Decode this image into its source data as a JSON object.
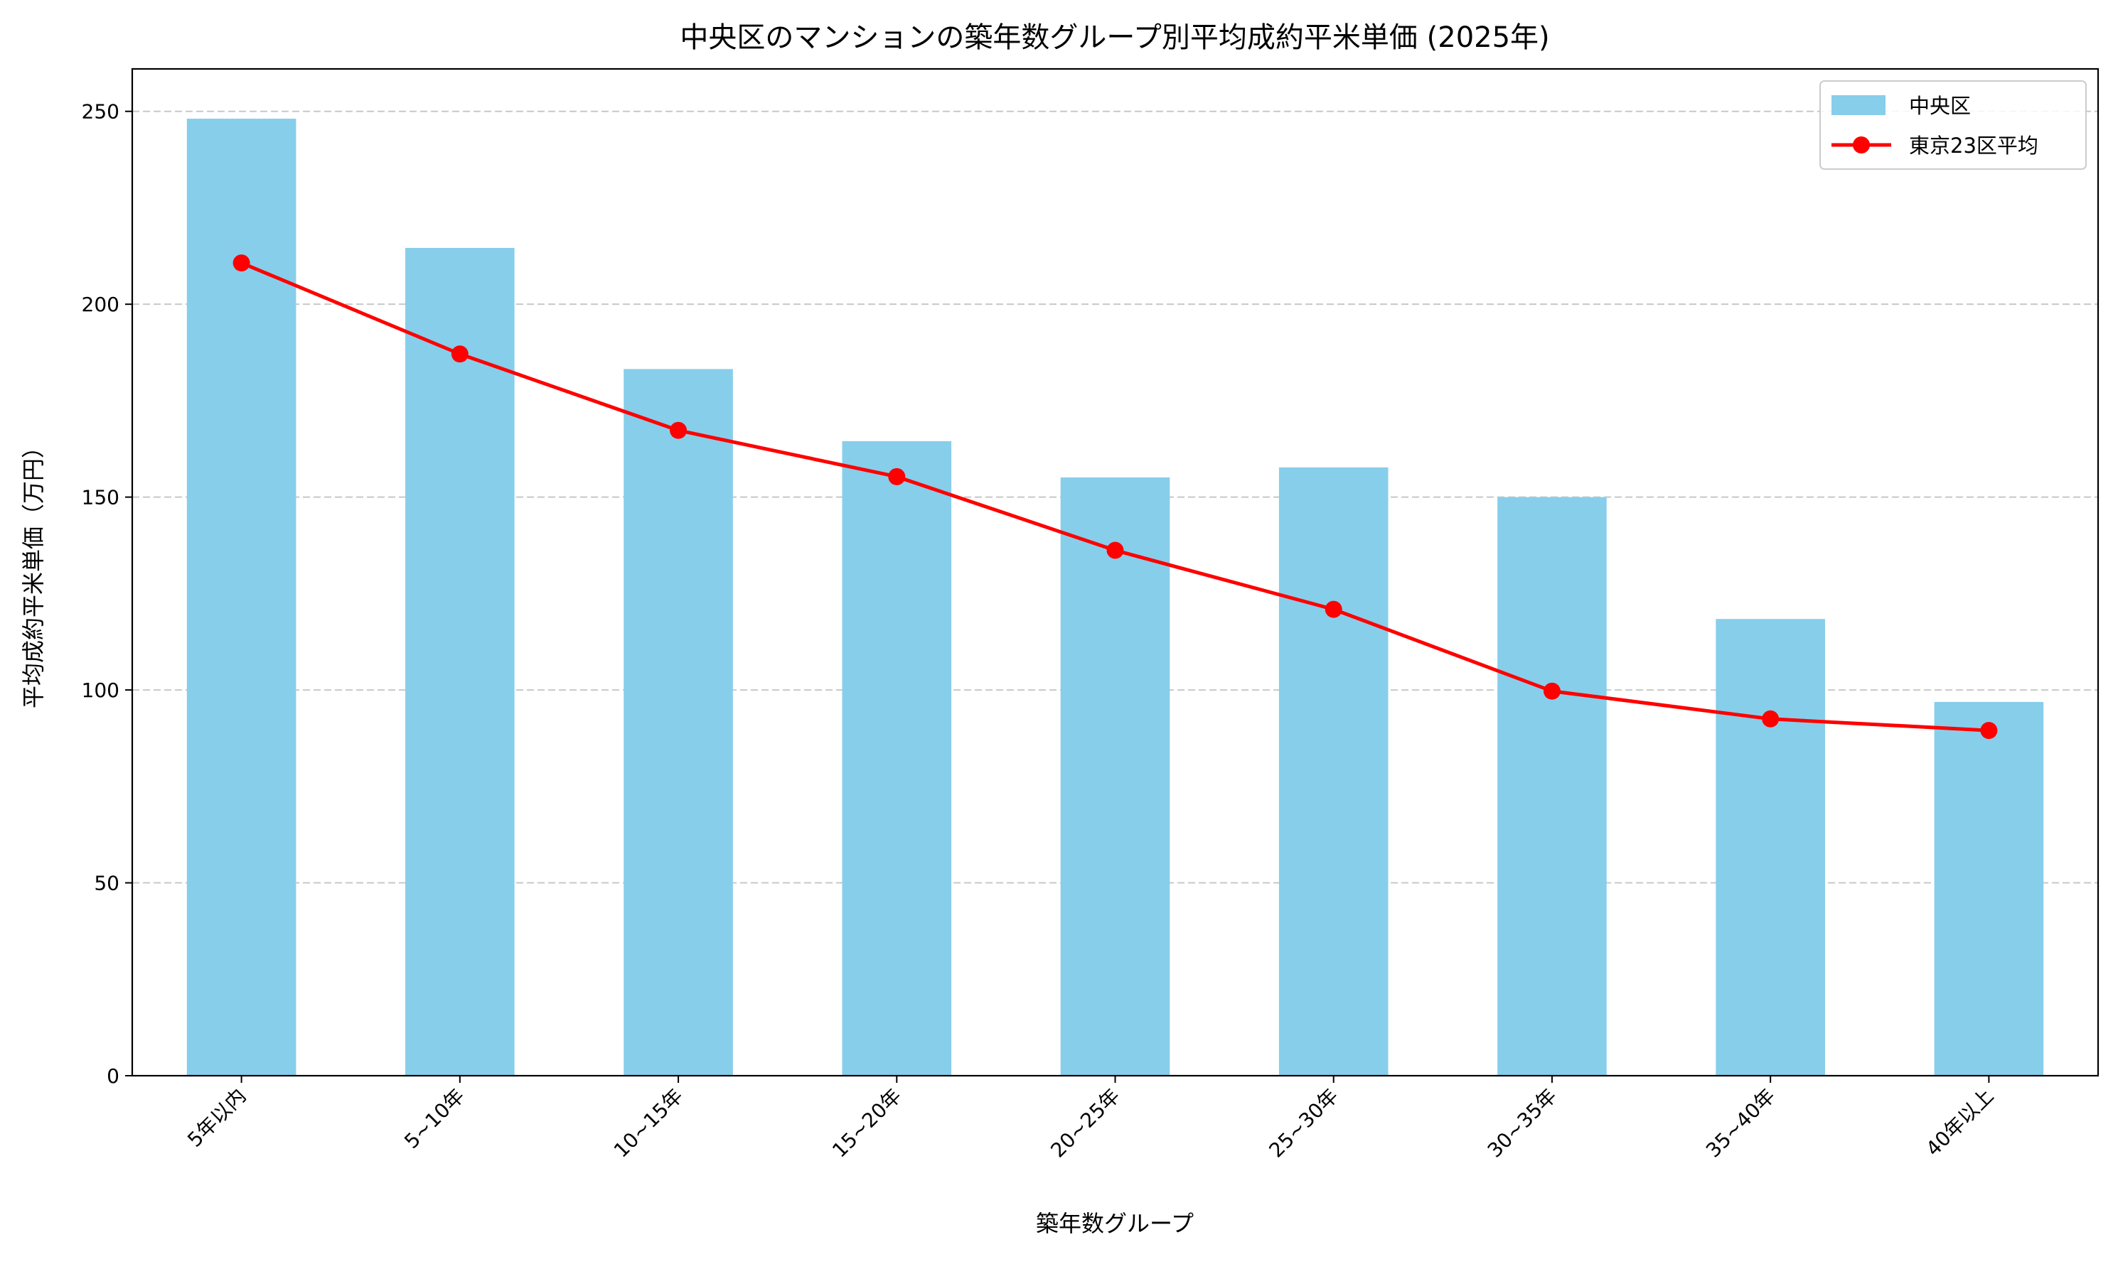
{
  "chart_data": {
    "type": "bar+line",
    "title": "中央区のマンションの築年数グループ別平均成約平米単価 (2025年)",
    "xlabel": "築年数グループ",
    "ylabel": "平均成約平米単価（万円）",
    "categories": [
      "5年以内",
      "5~10年",
      "10~15年",
      "15~20年",
      "20~25年",
      "25~30年",
      "30~35年",
      "35~40年",
      "40年以上"
    ],
    "ylim": [
      0,
      261
    ],
    "yticks": [
      0,
      50,
      100,
      150,
      200,
      250
    ],
    "grid": "y-dashed",
    "legend_position": "top-right",
    "series": [
      {
        "name": "中央区",
        "kind": "bar",
        "color": "#87CEEB",
        "values": [
          248.1,
          214.6,
          183.2,
          164.5,
          155.1,
          157.7,
          150.0,
          118.4,
          96.9
        ]
      },
      {
        "name": "東京23区平均",
        "kind": "line",
        "marker": "circle",
        "color": "#FF0000",
        "values": [
          210.7,
          187.1,
          167.3,
          155.3,
          136.2,
          120.9,
          99.7,
          92.5,
          89.5
        ]
      }
    ]
  }
}
